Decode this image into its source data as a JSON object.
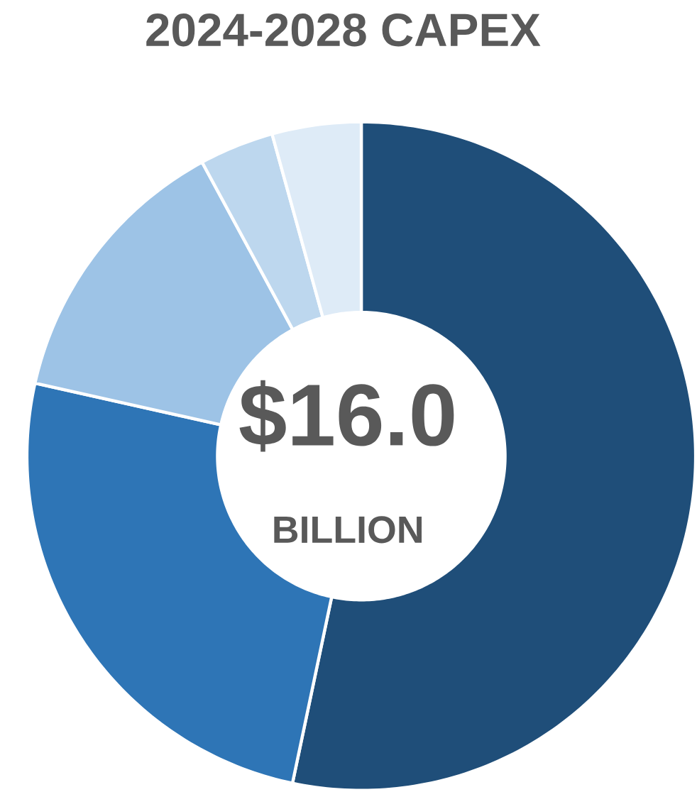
{
  "chart_data": {
    "type": "donut",
    "title": "2024-2028 CAPEX",
    "categories": [
      null,
      null,
      null,
      null,
      null
    ],
    "values": [
      53.3,
      25.2,
      13.6,
      3.6,
      4.3
    ],
    "colors": [
      "#1f4e79",
      "#2e75b6",
      "#9dc3e6",
      "#bdd7ee",
      "#deebf7"
    ],
    "annotations": [
      "$16.0",
      "BILLION"
    ]
  }
}
